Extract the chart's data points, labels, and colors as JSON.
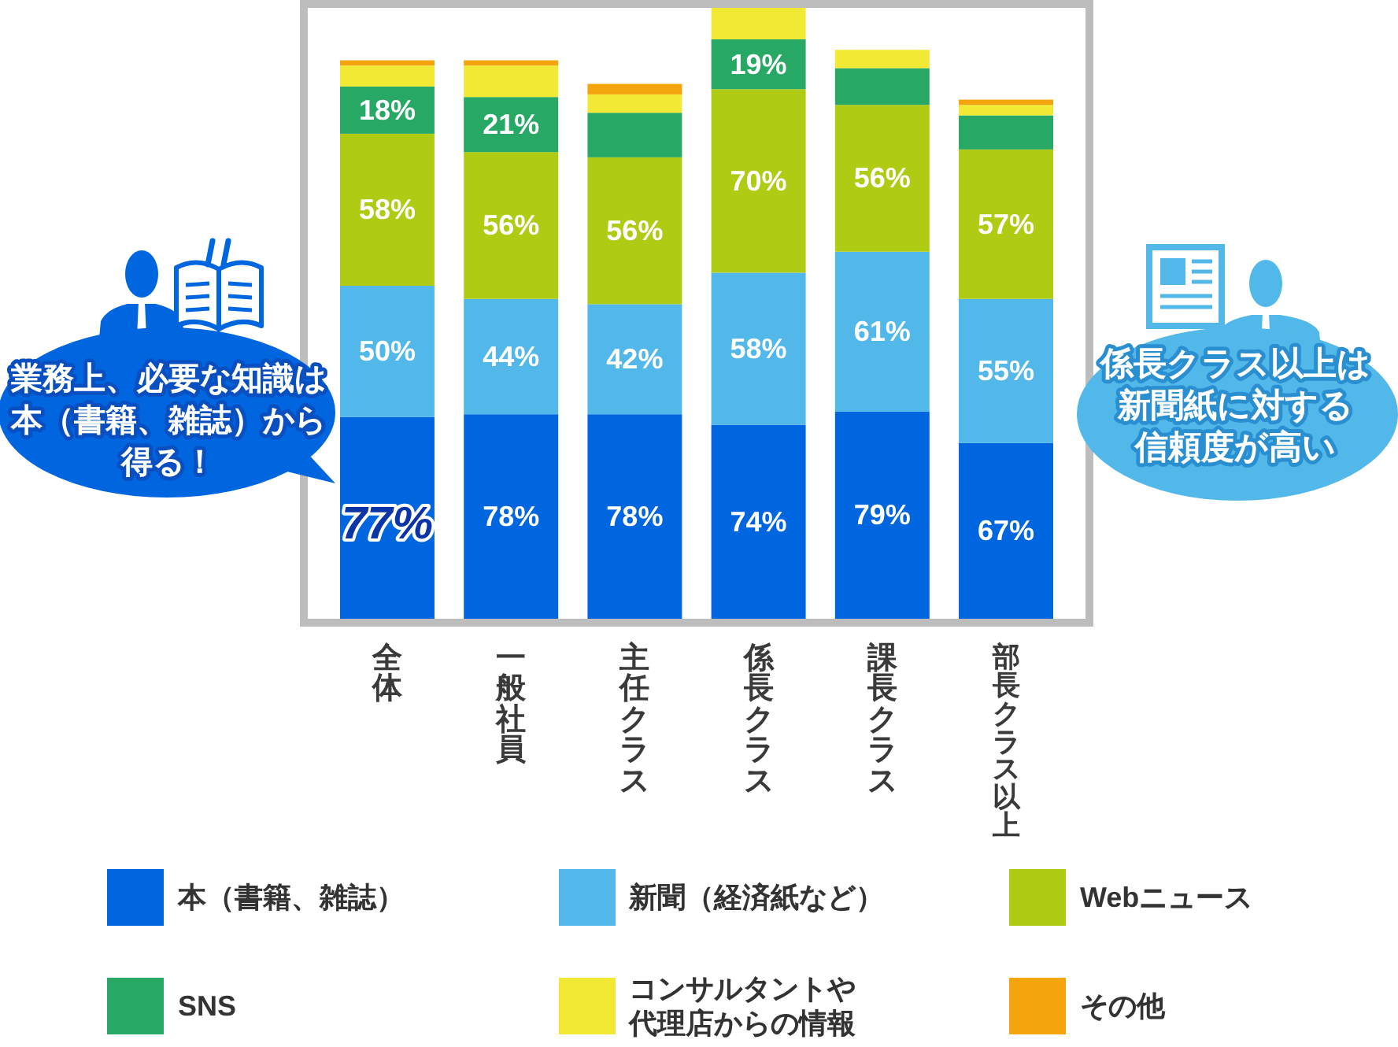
{
  "chart_data": {
    "type": "bar",
    "stacked": true,
    "categories": [
      "全体",
      "一般社員",
      "主任クラス",
      "係長クラス",
      "課長クラス",
      "部長クラス以上"
    ],
    "series": [
      {
        "name": "本（書籍、雑誌）",
        "color": "#0066e0",
        "values": [
          77,
          78,
          78,
          74,
          79,
          67
        ],
        "value_labels": [
          "77%",
          "78%",
          "78%",
          "74%",
          "79%",
          "67%"
        ]
      },
      {
        "name": "新聞（経済紙など）",
        "color": "#52b8e9",
        "values": [
          50,
          44,
          42,
          58,
          61,
          55
        ],
        "value_labels": [
          "50%",
          "44%",
          "42%",
          "58%",
          "61%",
          "55%"
        ]
      },
      {
        "name": "Webニュース",
        "color": "#afcb14",
        "values": [
          58,
          56,
          56,
          70,
          56,
          57
        ],
        "value_labels": [
          "58%",
          "56%",
          "56%",
          "70%",
          "56%",
          "57%"
        ]
      },
      {
        "name": "SNS",
        "color": "#27a864",
        "values": [
          18,
          21,
          17,
          19,
          14,
          13
        ],
        "value_labels": [
          "18%",
          "21%",
          null,
          "19%",
          null,
          null
        ]
      },
      {
        "name": "コンサルタントや代理店からの情報",
        "color": "#f2e935",
        "values": [
          8,
          12,
          7,
          12,
          7,
          4
        ]
      },
      {
        "name": "その他",
        "color": "#f4a40c",
        "values": [
          2,
          2,
          4,
          null,
          null,
          2
        ]
      }
    ],
    "ylim": [
      0,
      233
    ],
    "tick_labels": "x",
    "legend": "bottom",
    "annotations": [
      "業務上、必要な知識は本（書籍、雑誌）から得る！",
      "係長クラス以上は新聞紙に対する信頼度が高い"
    ]
  }
}
